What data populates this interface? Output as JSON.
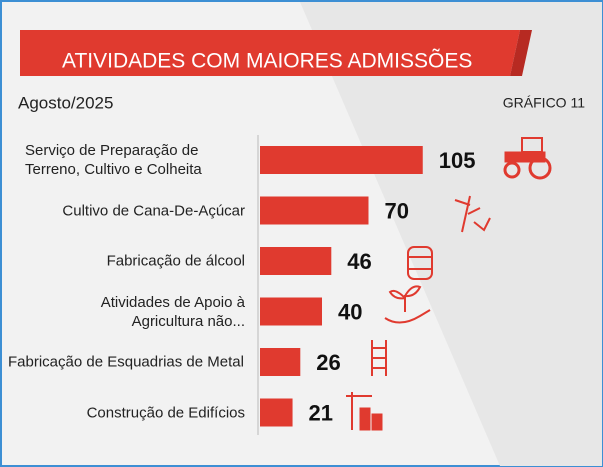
{
  "chart_data": {
    "type": "bar",
    "orientation": "horizontal",
    "title": "ATIVIDADES COM MAIORES ADMISSÕES",
    "subtitle": "Agosto/2025",
    "label": "GRÁFICO 11",
    "categories": [
      "Serviço de Preparação de Terreno, Cultivo e Colheita",
      "Cultivo de Cana-De-Açúcar",
      "Fabricação de álcool",
      "Atividades de Apoio à Agricultura não...",
      "Fabricação de Esquadrias de Metal",
      "Construção de Edifícios"
    ],
    "values": [
      105,
      70,
      46,
      40,
      26,
      21
    ],
    "color": "#e03a2f",
    "xlim": [
      0,
      120
    ]
  }
}
